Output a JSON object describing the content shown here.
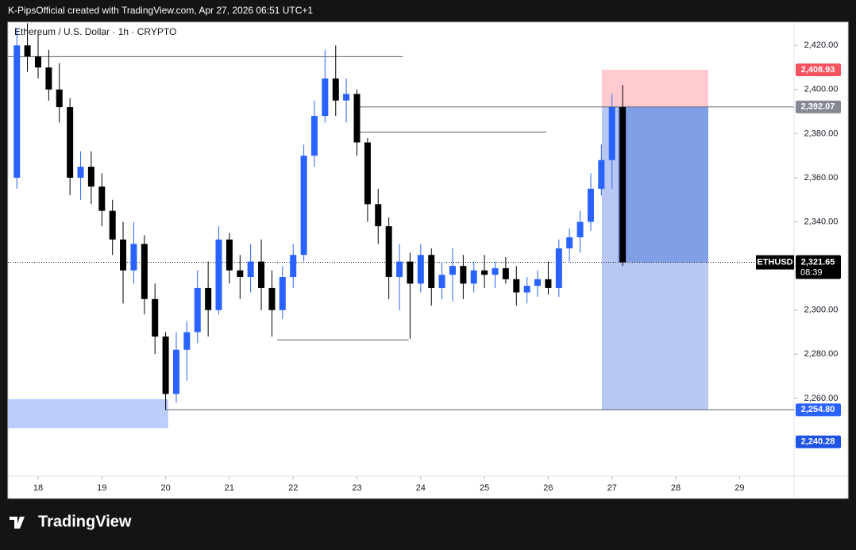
{
  "header": {
    "text": "K-PipsOfficial created with TradingView.com, Apr 27, 2026 06:51 UTC+1"
  },
  "footer": {
    "logo": "TradingView"
  },
  "chart_data": {
    "type": "candlestick",
    "title": "Ethereum / U.S. Dollar · 1h · CRYPTO",
    "up_color": "#2962ff",
    "down_color": "#000000",
    "x": [
      17.667,
      17.833,
      18,
      18.167,
      18.333,
      18.5,
      18.667,
      18.833,
      19,
      19.167,
      19.333,
      19.5,
      19.667,
      19.833,
      20,
      20.167,
      20.333,
      20.5,
      20.667,
      20.833,
      21,
      21.167,
      21.333,
      21.5,
      21.667,
      21.833,
      22,
      22.167,
      22.333,
      22.5,
      22.667,
      22.833,
      23,
      23.167,
      23.333,
      23.5,
      23.667,
      23.833,
      24,
      24.167,
      24.333,
      24.5,
      24.667,
      24.833,
      25,
      25.167,
      25.333,
      25.5,
      25.667,
      25.833,
      26,
      26.167,
      26.333,
      26.5,
      26.667,
      26.833,
      27,
      27.167
    ],
    "open": [
      2360,
      2420,
      2415,
      2410,
      2400,
      2392,
      2360,
      2365,
      2356,
      2345,
      2332,
      2318,
      2330,
      2305,
      2288,
      2262,
      2282,
      2290,
      2310,
      2300,
      2332,
      2318,
      2315,
      2322,
      2310,
      2300,
      2315,
      2325,
      2370,
      2388,
      2405,
      2395,
      2398,
      2376,
      2348,
      2338,
      2315,
      2322,
      2312,
      2325,
      2310,
      2316,
      2320,
      2312,
      2318,
      2316,
      2319,
      2314,
      2308,
      2311,
      2314,
      2310,
      2328,
      2333,
      2340,
      2355,
      2368,
      2392
    ],
    "high": [
      2428,
      2430,
      2425,
      2418,
      2412,
      2396,
      2372,
      2372,
      2362,
      2350,
      2340,
      2340,
      2334,
      2312,
      2290,
      2290,
      2295,
      2318,
      2322,
      2338,
      2335,
      2325,
      2330,
      2332,
      2318,
      2320,
      2330,
      2375,
      2395,
      2418,
      2420,
      2405,
      2400,
      2378,
      2355,
      2342,
      2330,
      2326,
      2330,
      2328,
      2322,
      2328,
      2325,
      2322,
      2325,
      2322,
      2324,
      2320,
      2315,
      2318,
      2322,
      2332,
      2337,
      2345,
      2362,
      2375,
      2398,
      2402
    ],
    "low": [
      2355,
      2408,
      2405,
      2395,
      2385,
      2352,
      2350,
      2348,
      2338,
      2325,
      2303,
      2312,
      2298,
      2280,
      2255,
      2258,
      2268,
      2285,
      2288,
      2298,
      2312,
      2305,
      2308,
      2300,
      2288,
      2296,
      2310,
      2322,
      2365,
      2385,
      2388,
      2385,
      2370,
      2340,
      2330,
      2305,
      2300,
      2287,
      2308,
      2302,
      2305,
      2304,
      2305,
      2308,
      2310,
      2310,
      2312,
      2302,
      2303,
      2306,
      2307,
      2306,
      2322,
      2326,
      2336,
      2352,
      2355,
      2320
    ],
    "close": [
      2420,
      2415,
      2410,
      2400,
      2392,
      2360,
      2365,
      2356,
      2345,
      2332,
      2318,
      2330,
      2305,
      2288,
      2262,
      2282,
      2290,
      2310,
      2300,
      2332,
      2318,
      2315,
      2322,
      2310,
      2300,
      2315,
      2325,
      2370,
      2388,
      2405,
      2395,
      2398,
      2376,
      2348,
      2338,
      2315,
      2322,
      2312,
      2325,
      2310,
      2316,
      2320,
      2312,
      2318,
      2316,
      2319,
      2314,
      2308,
      2311,
      2314,
      2310,
      2328,
      2333,
      2340,
      2355,
      2368,
      2392,
      2321.65
    ],
    "xlim": [
      17.527,
      29.855
    ],
    "xticks": [
      18,
      19,
      20,
      21,
      22,
      23,
      24,
      25,
      26,
      27,
      28,
      29
    ],
    "ylim": [
      2224.7,
      2430.5
    ],
    "yticks": [
      {
        "value": 2260,
        "label": "2,260.00"
      },
      {
        "value": 2280,
        "label": "2,280.00"
      },
      {
        "value": 2300,
        "label": "2,300.00"
      },
      {
        "value": 2320,
        "label": "2,320.00"
      },
      {
        "value": 2340,
        "label": "2,340.00"
      },
      {
        "value": 2360,
        "label": "2,360.00"
      },
      {
        "value": 2380,
        "label": "2,380.00"
      },
      {
        "value": 2400,
        "label": "2,400.00"
      },
      {
        "value": 2420,
        "label": "2,420.00"
      }
    ],
    "zones": [
      {
        "x": [
          17.527,
          20.04
        ],
        "y": [
          2246.5,
          2259.6
        ],
        "color": "#bccdfb"
      },
      {
        "x": [
          26.84,
          28.51
        ],
        "y": [
          2254.8,
          2392.07
        ],
        "color": "#b9c8f3"
      },
      {
        "x": [
          26.84,
          28.51
        ],
        "y": [
          2392.07,
          2408.93
        ],
        "color": "#ffcad0"
      },
      {
        "x": [
          27.09,
          28.51
        ],
        "y": [
          2321.65,
          2392.07
        ],
        "color": "#819fe6"
      }
    ],
    "lines": [
      {
        "x": [
          17.527,
          23.72
        ],
        "y": 2414.9
      },
      {
        "x": [
          23.01,
          29.855
        ],
        "y": 2392.07
      },
      {
        "x": [
          23.04,
          25.97
        ],
        "y": 2380.7
      },
      {
        "x": [
          21.75,
          23.81
        ],
        "y": 2286.5
      },
      {
        "x": [
          19.99,
          29.855
        ],
        "y": 2254.8
      }
    ],
    "markers": [
      {
        "value": 2408.93,
        "label": "2,408.93",
        "color": "#f7525f"
      },
      {
        "value": 2392.07,
        "label": "2,392.07",
        "color": "#868993"
      },
      {
        "value": 2254.8,
        "label": "2,254.80",
        "color": "#2962ff"
      },
      {
        "value": 2240.28,
        "label": "2,240.28",
        "color": "#1e53e5"
      }
    ],
    "last_price": {
      "value": 2321.65,
      "label": "2,321.65",
      "symbol": "ETHUSD",
      "countdown": "08:39",
      "color": "#000000"
    }
  }
}
